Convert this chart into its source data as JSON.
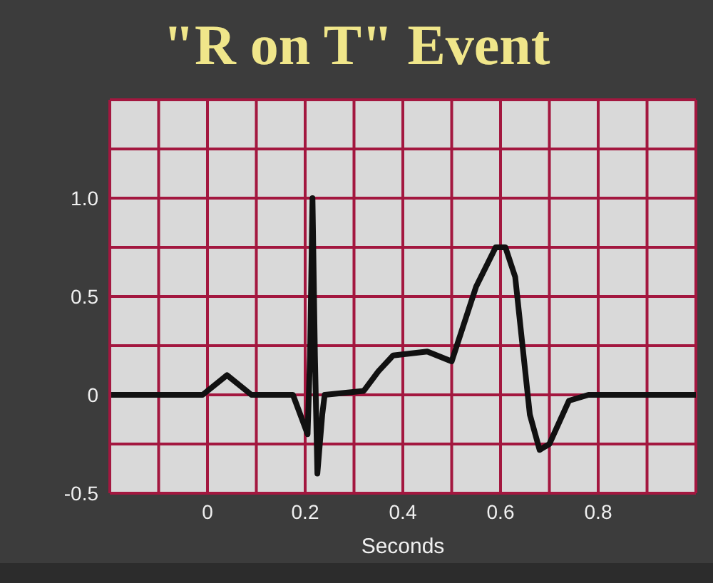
{
  "chart_data": {
    "type": "line",
    "title": "\"R on T\" Event",
    "xlabel": "Seconds",
    "x": [
      -0.2,
      -0.01,
      0.04,
      0.09,
      0.175,
      0.205,
      0.21,
      0.215,
      0.22,
      0.225,
      0.235,
      0.24,
      0.32,
      0.35,
      0.38,
      0.45,
      0.5,
      0.55,
      0.59,
      0.61,
      0.63,
      0.66,
      0.68,
      0.7,
      0.74,
      0.78,
      1.0
    ],
    "series": [
      {
        "color": "#111111",
        "values": [
          0,
          0,
          0.1,
          0,
          0,
          -0.2,
          0.2,
          1.0,
          0.2,
          -0.4,
          -0.1,
          0,
          0.02,
          0.12,
          0.2,
          0.22,
          0.17,
          0.55,
          0.75,
          0.75,
          0.6,
          -0.1,
          -0.28,
          -0.25,
          -0.03,
          0,
          0
        ]
      }
    ],
    "xlim": [
      -0.2,
      1.0
    ],
    "ylim": [
      -0.5,
      1.5
    ],
    "xticks": [
      {
        "value": -0.2,
        "label": null
      },
      {
        "value": -0.1,
        "label": null
      },
      0,
      {
        "value": 0.1,
        "label": null
      },
      0.2,
      {
        "value": 0.3,
        "label": null
      },
      0.4,
      {
        "value": 0.5,
        "label": null
      },
      0.6,
      {
        "value": 0.7,
        "label": null
      },
      0.8,
      {
        "value": 0.9,
        "label": null
      },
      {
        "value": 1.0,
        "label": null
      }
    ],
    "yticks": [
      -0.5,
      {
        "value": -0.25,
        "label": null
      },
      0,
      {
        "value": 0.25,
        "label": null
      },
      0.5,
      {
        "value": 0.75,
        "label": null
      },
      {
        "value": 1.0,
        "label": "1.0"
      },
      {
        "value": 1.25,
        "label": null
      },
      {
        "value": 1.5,
        "label": null
      }
    ],
    "grid": true,
    "marker": "none",
    "line_style": "solid"
  }
}
